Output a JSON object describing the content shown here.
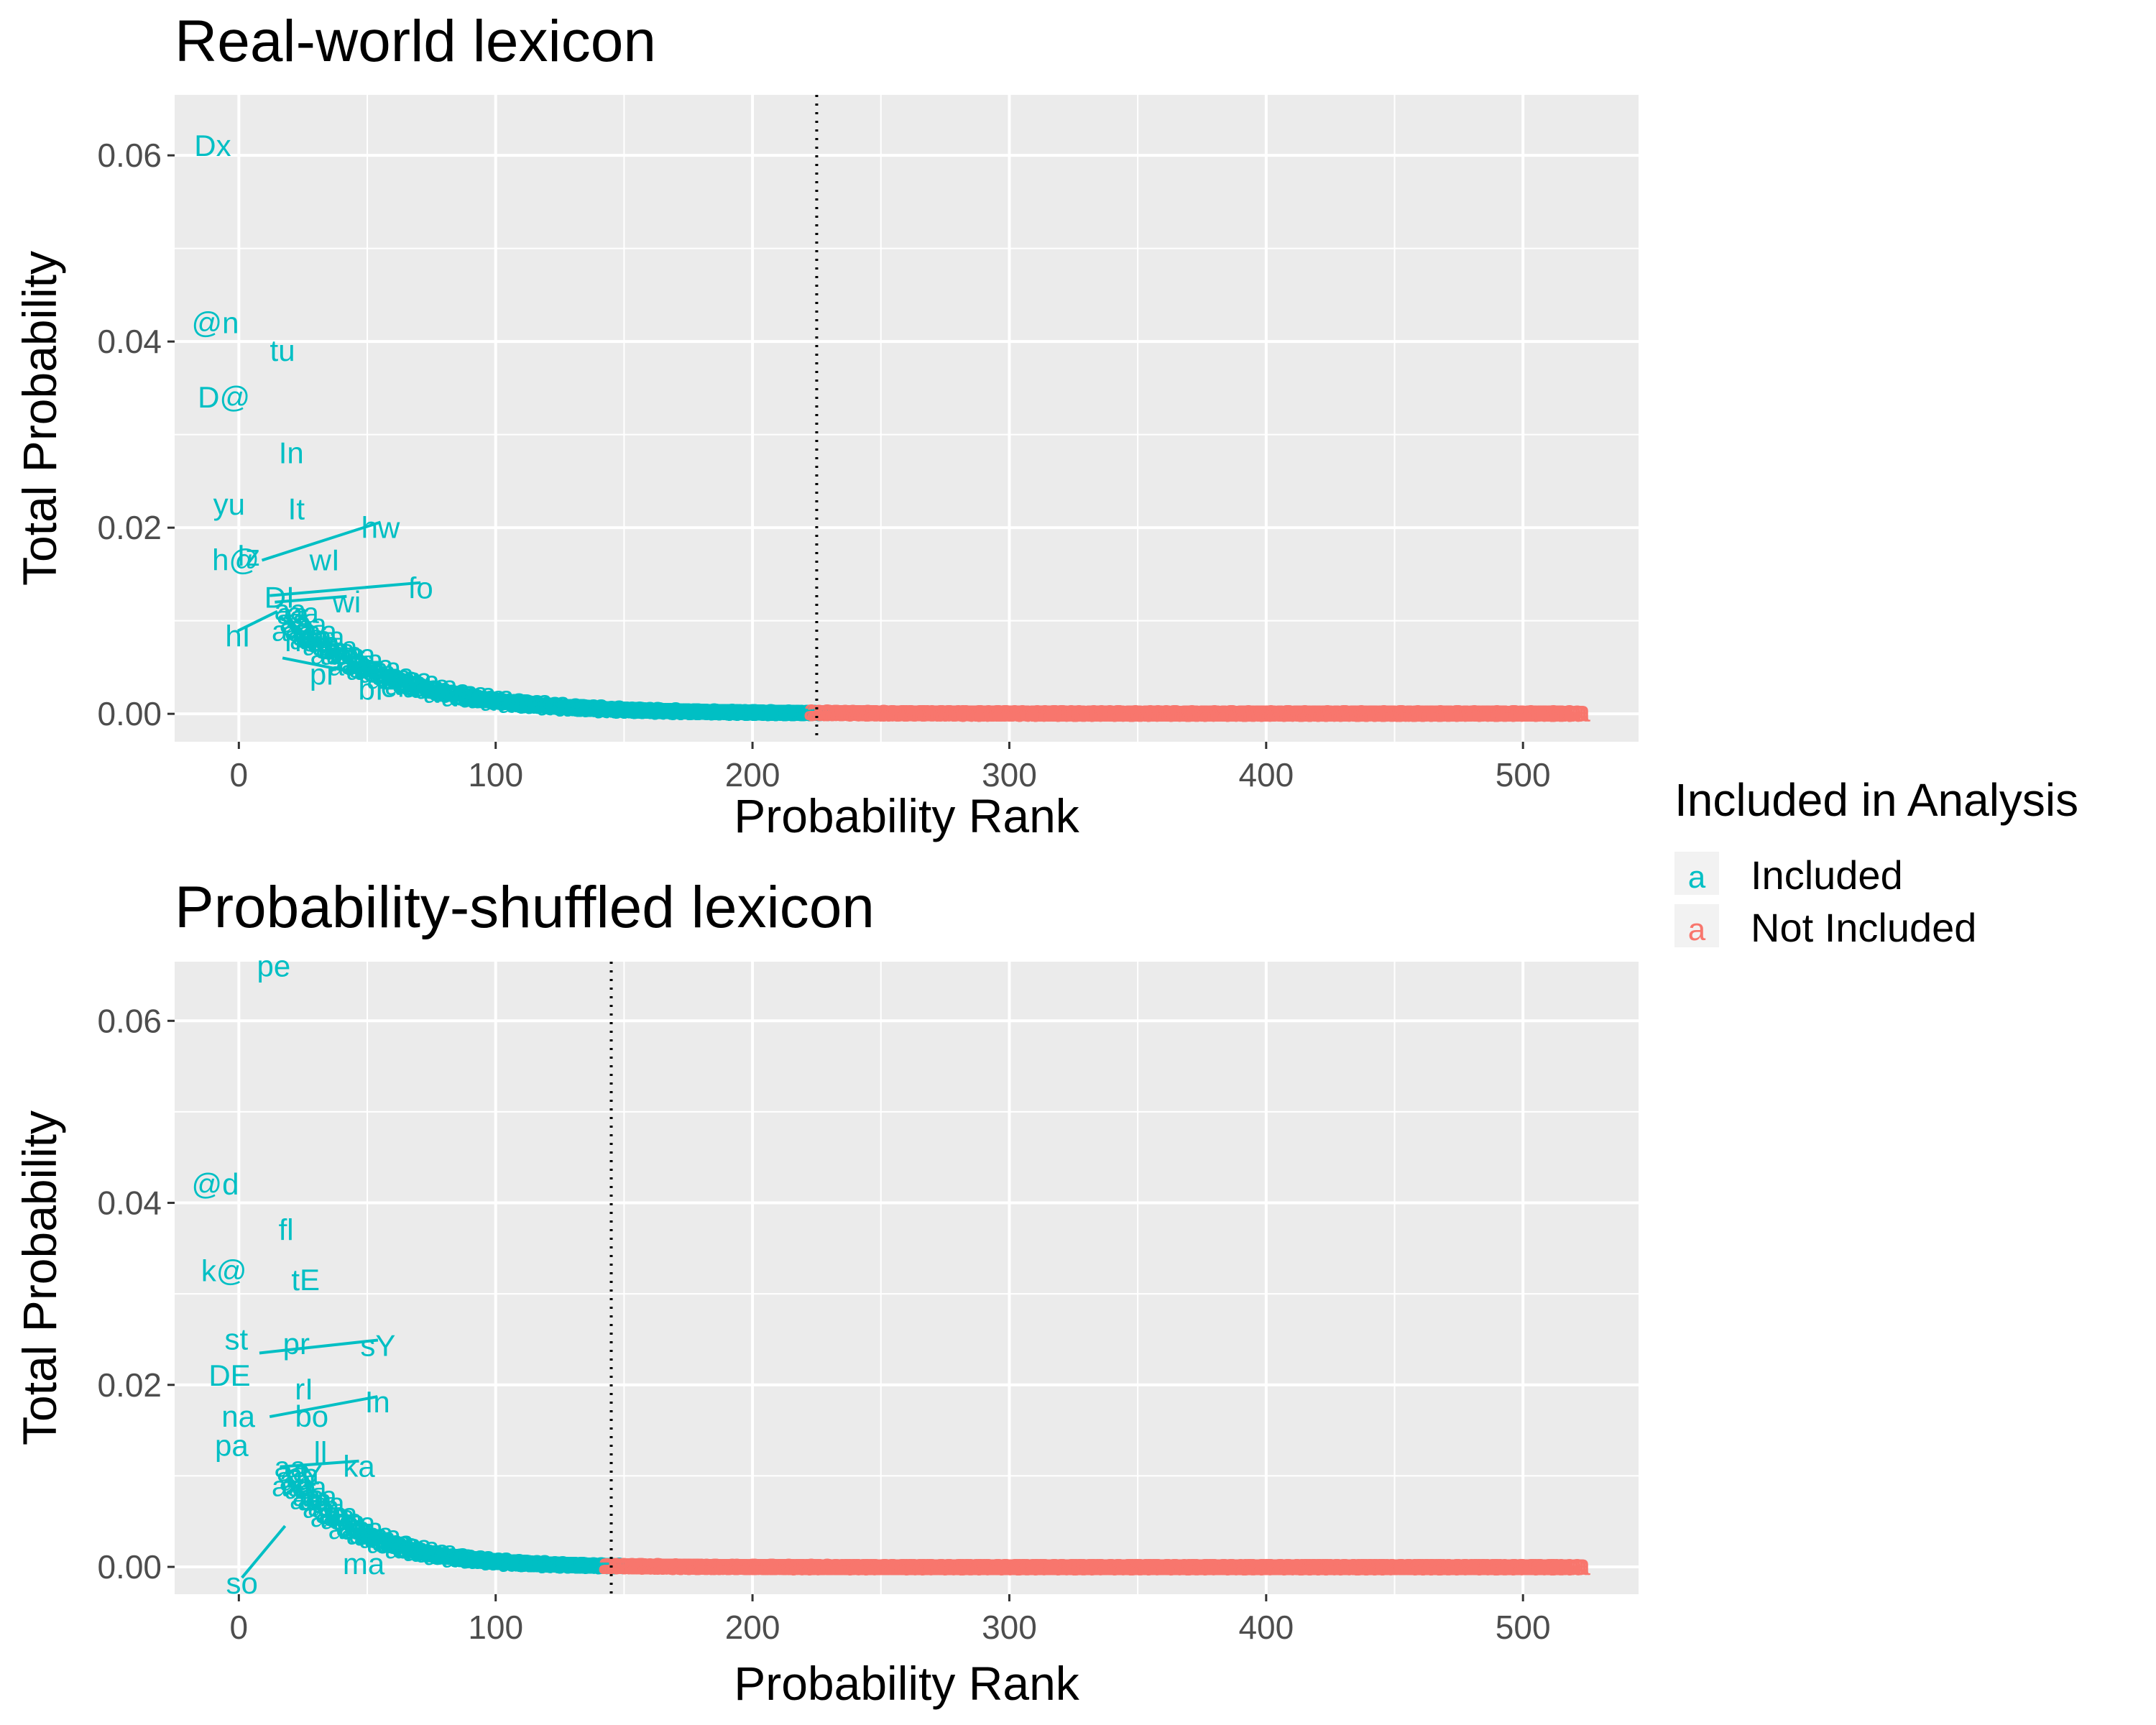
{
  "legend": {
    "title": "Included in Analysis",
    "key_glyph": "a",
    "entries": [
      {
        "label": "Included",
        "color": "#00BFC4"
      },
      {
        "label": "Not Included",
        "color": "#F8766D"
      }
    ]
  },
  "colors": {
    "included": "#00BFC4",
    "not_included": "#F8766D",
    "panel_bg": "#EBEBEB",
    "grid": "#FFFFFF",
    "axis_text": "#4D4D4D",
    "title_text": "#000000"
  },
  "chart_data": [
    {
      "type": "scatter",
      "title": "Real-world lexicon",
      "xlabel": "Probability Rank",
      "ylabel": "Total Probability",
      "xlim": [
        -25,
        545
      ],
      "ylim": [
        -0.003,
        0.0665
      ],
      "x_ticks": [
        0,
        100,
        200,
        300,
        400,
        500
      ],
      "x_tick_labels": [
        "0",
        "100",
        "200",
        "300",
        "400",
        "500"
      ],
      "y_ticks": [
        0.0,
        0.02,
        0.04,
        0.06
      ],
      "y_tick_labels": [
        "0.00",
        "0.02",
        "0.04",
        "0.06"
      ],
      "cutoff_rank": 225,
      "n_points": 520,
      "curve": {
        "p0": 0.0105,
        "decay": 0.025,
        "floor": 0.0003,
        "start_rank": 19
      },
      "labeled_points": [
        {
          "label": "Dx",
          "x": 1,
          "y": 0.061
        },
        {
          "label": "@n",
          "x": 2,
          "y": 0.042
        },
        {
          "label": "tu",
          "x": 3,
          "y": 0.039
        },
        {
          "label": "D@",
          "x": 4,
          "y": 0.034
        },
        {
          "label": "In",
          "x": 5,
          "y": 0.028
        },
        {
          "label": "yu",
          "x": 6,
          "y": 0.0225
        },
        {
          "label": "It",
          "x": 7,
          "y": 0.022
        },
        {
          "label": "Iz",
          "x": 8,
          "y": 0.017
        },
        {
          "label": "hw",
          "x": 9,
          "y": 0.0165
        },
        {
          "label": "h@",
          "x": 10,
          "y": 0.0165
        },
        {
          "label": "wI",
          "x": 11,
          "y": 0.0165
        },
        {
          "label": "fo",
          "x": 12,
          "y": 0.0127
        },
        {
          "label": "DI",
          "x": 13,
          "y": 0.0125
        },
        {
          "label": "wi",
          "x": 14,
          "y": 0.012
        },
        {
          "label": "hI",
          "x": 15,
          "y": 0.011
        },
        {
          "label": "no",
          "x": 16,
          "y": 0.0105
        },
        {
          "label": "en",
          "x": 17,
          "y": 0.006
        },
        {
          "label": "pr",
          "x": 30,
          "y": 0.005
        },
        {
          "label": "bI",
          "x": 50,
          "y": 0.003
        }
      ]
    },
    {
      "type": "scatter",
      "title": "Probability-shuffled lexicon",
      "xlabel": "Probability Rank",
      "ylabel": "Total Probability",
      "xlim": [
        -25,
        545
      ],
      "ylim": [
        -0.003,
        0.0665
      ],
      "x_ticks": [
        0,
        100,
        200,
        300,
        400,
        500
      ],
      "x_tick_labels": [
        "0",
        "100",
        "200",
        "300",
        "400",
        "500"
      ],
      "y_ticks": [
        0.0,
        0.02,
        0.04,
        0.06
      ],
      "y_tick_labels": [
        "0.00",
        "0.02",
        "0.04",
        "0.06"
      ],
      "cutoff_rank": 145,
      "n_points": 520,
      "curve": {
        "p0": 0.0105,
        "decay": 0.035,
        "floor": 0.00025,
        "start_rank": 19
      },
      "labeled_points": [
        {
          "label": "pe",
          "x": 1,
          "y": 0.064
        },
        {
          "label": "@d",
          "x": 2,
          "y": 0.042
        },
        {
          "label": "fl",
          "x": 3,
          "y": 0.037
        },
        {
          "label": "k@",
          "x": 4,
          "y": 0.0325
        },
        {
          "label": "tE",
          "x": 5,
          "y": 0.0315
        },
        {
          "label": "st",
          "x": 6,
          "y": 0.025
        },
        {
          "label": "pr",
          "x": 7,
          "y": 0.0245
        },
        {
          "label": "sY",
          "x": 8,
          "y": 0.0235
        },
        {
          "label": "DE",
          "x": 9,
          "y": 0.021
        },
        {
          "label": "rI",
          "x": 10,
          "y": 0.0195
        },
        {
          "label": "na",
          "x": 11,
          "y": 0.0165
        },
        {
          "label": "In",
          "x": 12,
          "y": 0.0165
        },
        {
          "label": "bo",
          "x": 13,
          "y": 0.0165
        },
        {
          "label": "pa",
          "x": 14,
          "y": 0.0133
        },
        {
          "label": "ll",
          "x": 15,
          "y": 0.0125
        },
        {
          "label": "ka",
          "x": 16,
          "y": 0.011
        },
        {
          "label": "nY",
          "x": 17,
          "y": 0.0108
        },
        {
          "label": "so",
          "x": 18,
          "y": 0.0045
        },
        {
          "label": "ma",
          "x": 50,
          "y": 0.0015
        }
      ]
    }
  ]
}
